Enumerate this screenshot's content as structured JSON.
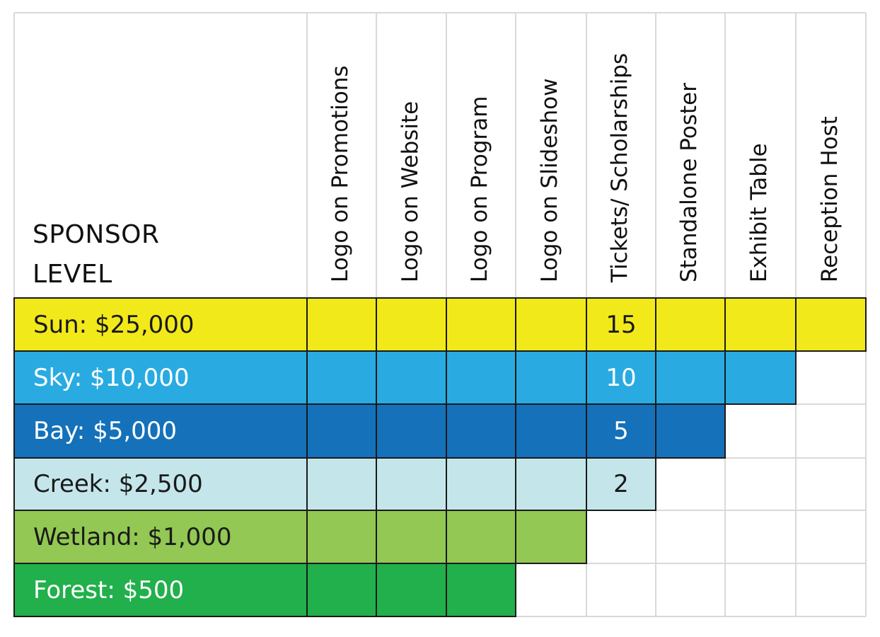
{
  "header": {
    "level_line1": "SPONSOR",
    "level_line2": "LEVEL",
    "columns": [
      "Logo on Promotions",
      "Logo on Website",
      "Logo on Program",
      "Logo on Slideshow",
      "Tickets/ Scholarships",
      "Standalone Poster",
      "Exhibit Table",
      "Reception Host"
    ]
  },
  "levels": [
    {
      "label": "Sun: $25,000",
      "color": "#f2e91a",
      "text_color": "#1a1a1a",
      "benefits": 8,
      "tickets": "15"
    },
    {
      "label": "Sky: $10,000",
      "color": "#29abe2",
      "text_color": "#ffffff",
      "benefits": 7,
      "tickets": "10"
    },
    {
      "label": "Bay: $5,000",
      "color": "#1471ba",
      "text_color": "#ffffff",
      "benefits": 6,
      "tickets": "5"
    },
    {
      "label": "Creek: $2,500",
      "color": "#c4e6ea",
      "text_color": "#1a1a1a",
      "benefits": 5,
      "tickets": "2"
    },
    {
      "label": "Wetland: $1,000",
      "color": "#92c853",
      "text_color": "#1a1a1a",
      "benefits": 4,
      "tickets": ""
    },
    {
      "label": "Forest: $500",
      "color": "#21b04b",
      "text_color": "#ffffff",
      "benefits": 3,
      "tickets": ""
    }
  ]
}
